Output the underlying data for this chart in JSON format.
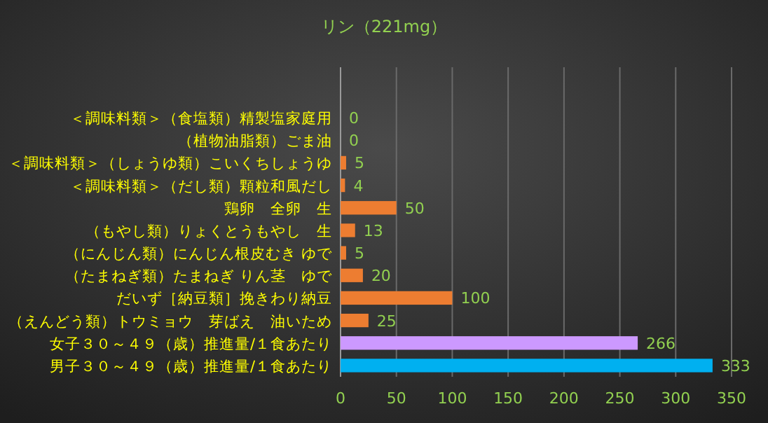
{
  "chart_data": {
    "type": "bar",
    "orientation": "horizontal",
    "title": "リン（221mg）",
    "categories": [
      "＜調味料類＞（食塩類）精製塩家庭用",
      "（植物油脂類）ごま油",
      "＜調味料類＞（しょうゆ類）こいくちしょうゆ",
      "＜調味料類＞（だし類）顆粒和風だし",
      "鶏卵　全卵　生",
      "（もやし類）りょくとうもやし　生",
      "（にんじん類）にんじん根皮むき ゆで",
      "（たまねぎ類）たまねぎ りん茎　ゆで",
      "だいず［納豆類］挽きわり納豆",
      "（えんどう類）トウミョウ　芽ばえ　油いため",
      "女子３０～４９（歳）推進量/１食あたり",
      "男子３０～４９（歳）推進量/１食あたり"
    ],
    "values": [
      0,
      0,
      5,
      4,
      50,
      13,
      5,
      20,
      100,
      25,
      266,
      333
    ],
    "colors": [
      "#ed7d31",
      "#ed7d31",
      "#ed7d31",
      "#ed7d31",
      "#ed7d31",
      "#ed7d31",
      "#ed7d31",
      "#ed7d31",
      "#ed7d31",
      "#ed7d31",
      "#cc99ff",
      "#00b0f0"
    ],
    "xlim": [
      0,
      350
    ],
    "xticks": [
      0,
      50,
      100,
      150,
      200,
      250,
      300,
      350
    ],
    "grid": "x",
    "data_labels": true
  }
}
